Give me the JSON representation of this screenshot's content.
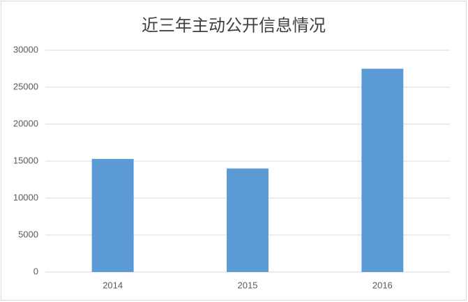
{
  "chart_data": {
    "type": "bar",
    "title": "近三年主动公开信息情况",
    "categories": [
      "2014",
      "2015",
      "2016"
    ],
    "values": [
      15300,
      14000,
      27500
    ],
    "color": "#5b9bd5",
    "ylim": [
      0,
      30000
    ],
    "yticks": [
      0,
      5000,
      10000,
      15000,
      20000,
      25000,
      30000
    ],
    "grid": true
  }
}
